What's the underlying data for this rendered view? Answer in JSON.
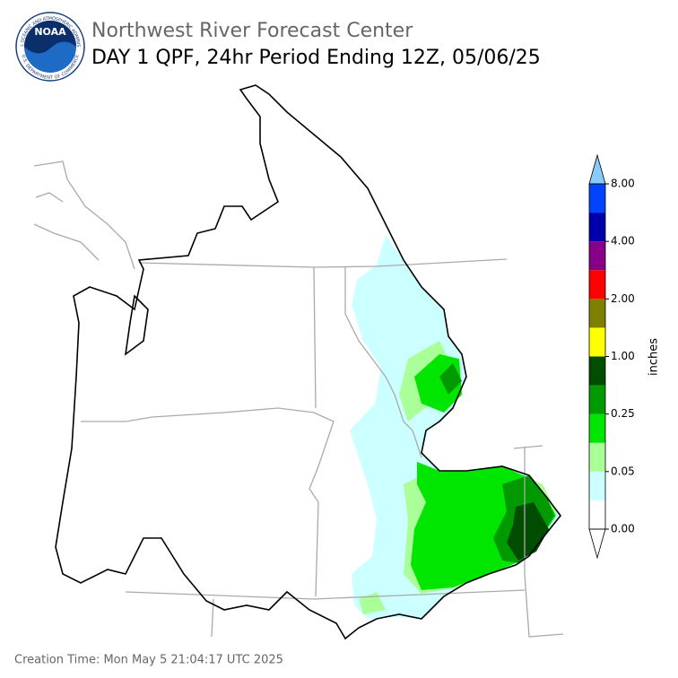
{
  "header": {
    "title": "Northwest River Forecast Center",
    "subtitle": "DAY 1 QPF, 24hr Period Ending 12Z, 05/06/25"
  },
  "logo": {
    "text": "NOAA",
    "ring_top": "NATIONAL OCEANIC AND ATMOSPHERIC ADMINISTRATION",
    "ring_bottom": "U.S. DEPARTMENT OF COMMERCE"
  },
  "colorbar": {
    "label": "inches",
    "colors": [
      "#ffffff",
      "#ccffff",
      "#aaff99",
      "#00e600",
      "#009900",
      "#004d00",
      "#ffff00",
      "#808000",
      "#ff0000",
      "#880088",
      "#0000aa",
      "#0044ff"
    ],
    "over_color": "#88ccff",
    "ticks": [
      "0.00",
      "0.05",
      "0.25",
      "1.00",
      "2.00",
      "4.00",
      "8.00"
    ]
  },
  "footer": {
    "creation_time": "Creation Time: Mon May 5 21:04:17 UTC 2025"
  }
}
